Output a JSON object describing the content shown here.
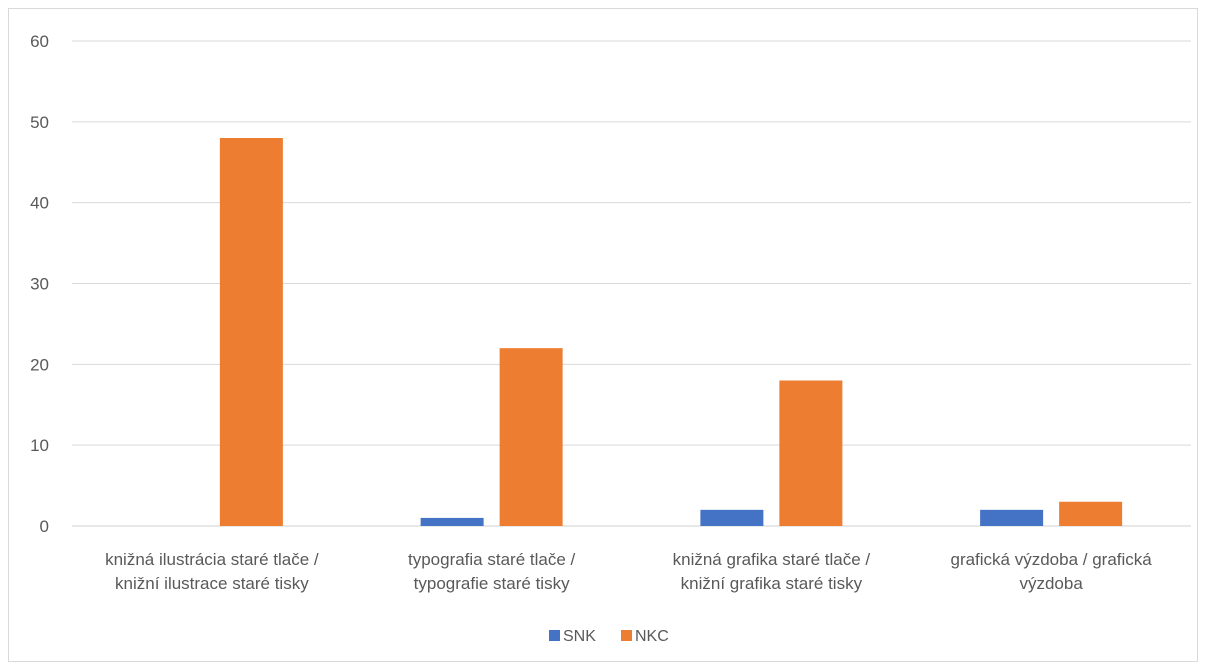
{
  "chart_data": {
    "type": "bar",
    "categories": [
      [
        "knižná ilustrácia staré tlače /",
        "knižní ilustrace staré tisky"
      ],
      [
        "typografia staré tlače /",
        "typografie staré tisky"
      ],
      [
        "knižná grafika staré tlače /",
        "knižní grafika staré tisky"
      ],
      [
        "grafická výzdoba / grafická",
        "výzdoba"
      ]
    ],
    "series": [
      {
        "name": "SNK",
        "color": "#4472C4",
        "values": [
          0,
          1,
          2,
          2
        ]
      },
      {
        "name": "NKC",
        "color": "#ED7D31",
        "values": [
          48,
          22,
          18,
          3
        ]
      }
    ],
    "title": "",
    "xlabel": "",
    "ylabel": "",
    "ylim": [
      0,
      60
    ],
    "yticks": [
      0,
      10,
      20,
      30,
      40,
      50,
      60
    ],
    "grid": true,
    "legend": "bottom"
  }
}
